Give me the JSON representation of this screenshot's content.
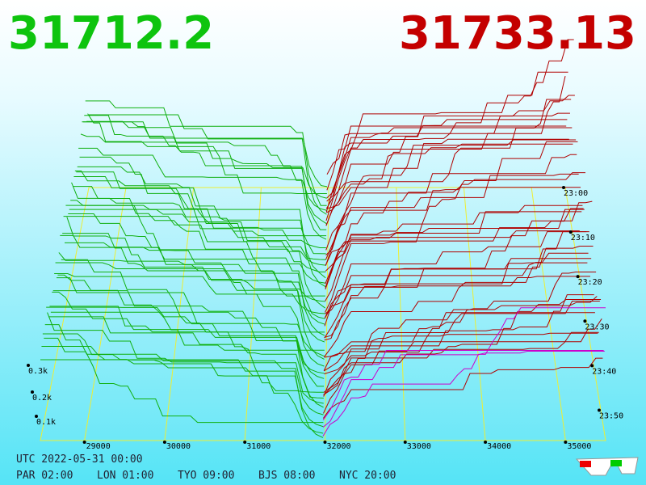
{
  "header": {
    "bid": "31712.2",
    "ask": "31733.13"
  },
  "price_labels": [
    "29000",
    "30000",
    "31000",
    "32000",
    "33000",
    "34000",
    "35000"
  ],
  "depth_labels": [
    "0.1k",
    "0.2k",
    "0.3k"
  ],
  "time_labels": [
    "23:00",
    "23:10",
    "23:20",
    "23:30",
    "23:40",
    "23:50"
  ],
  "footer": {
    "utc": "UTC 2022-05-31 00:00",
    "zones": [
      "PAR 02:00",
      "LON 01:00",
      "TYO 09:00",
      "BJS 08:00",
      "NYC 20:00"
    ]
  }
}
